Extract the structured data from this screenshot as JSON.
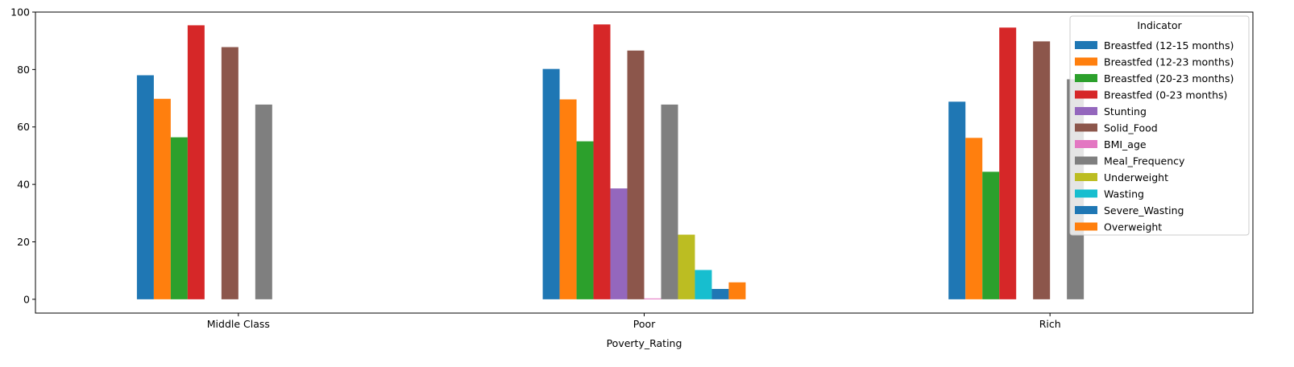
{
  "chart_data": {
    "type": "bar",
    "xlabel": "Poverty_Rating",
    "ylabel": "",
    "ylim": [
      -4.8,
      100
    ],
    "yticks": [
      0,
      20,
      40,
      60,
      80,
      100
    ],
    "categories": [
      "Middle Class",
      "Poor",
      "Rich"
    ],
    "legend": {
      "title": "Indicator",
      "placement": "top-right"
    },
    "series": [
      {
        "name": "Breastfed (12-15 months)",
        "color": "#1f77b4",
        "values": [
          78.0,
          80.2,
          68.8
        ]
      },
      {
        "name": "Breastfed (12-23 months)",
        "color": "#ff7f0e",
        "values": [
          69.8,
          69.6,
          56.2
        ]
      },
      {
        "name": "Breastfed (20-23 months)",
        "color": "#2ca02c",
        "values": [
          56.4,
          55.0,
          44.4
        ]
      },
      {
        "name": "Breastfed (0-23 months)",
        "color": "#d62728",
        "values": [
          95.4,
          95.7,
          94.6
        ]
      },
      {
        "name": "Stunting",
        "color": "#9467bd",
        "values": [
          null,
          38.6,
          null
        ]
      },
      {
        "name": "Solid_Food",
        "color": "#8c564b",
        "values": [
          87.8,
          86.6,
          89.8
        ]
      },
      {
        "name": "BMI_age",
        "color": "#e377c2",
        "values": [
          null,
          0.3,
          null
        ]
      },
      {
        "name": "Meal_Frequency",
        "color": "#7f7f7f",
        "values": [
          67.8,
          67.8,
          76.6
        ]
      },
      {
        "name": "Underweight",
        "color": "#bcbd22",
        "values": [
          null,
          22.5,
          null
        ]
      },
      {
        "name": "Wasting",
        "color": "#17becf",
        "values": [
          null,
          10.2,
          null
        ]
      },
      {
        "name": "Severe_Wasting",
        "color": "#1f77b4",
        "values": [
          null,
          3.6,
          null
        ]
      },
      {
        "name": "Overweight",
        "color": "#ff7f0e",
        "values": [
          null,
          5.9,
          null
        ]
      }
    ]
  }
}
